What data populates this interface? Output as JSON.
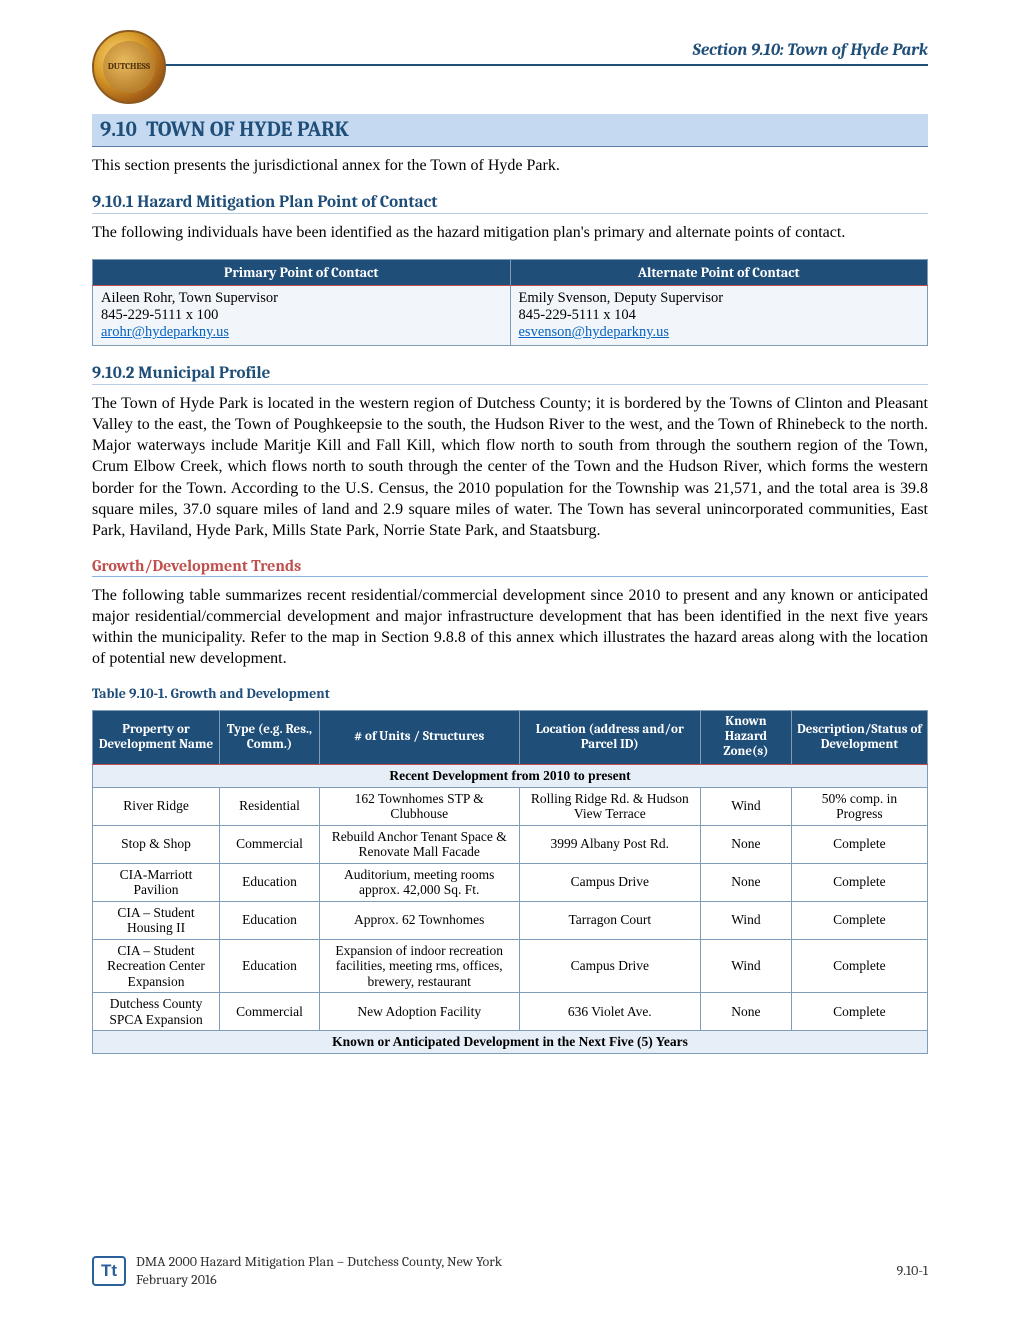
{
  "header": {
    "section_ref": "Section 9.10: Town of Hyde Park"
  },
  "title": {
    "number": "9.10",
    "text": "TOWN OF HYDE PARK"
  },
  "intro": "This section presents the jurisdictional annex for the Town of Hyde Park.",
  "contact_section": {
    "heading": "9.10.1 Hazard Mitigation Plan Point of Contact",
    "body": "The following individuals have been identified as the hazard mitigation plan's primary and alternate points of contact.",
    "primary_header": "Primary Point of Contact",
    "alternate_header": "Alternate Point of Contact",
    "primary": {
      "name_title": "Aileen Rohr, Town Supervisor",
      "phone": "845-229-5111 x 100",
      "email": "arohr@hydeparkny.us"
    },
    "alternate": {
      "name_title": "Emily Svenson, Deputy Supervisor",
      "phone": "845-229-5111 x 104",
      "email": "esvenson@hydeparkny.us"
    }
  },
  "profile_section": {
    "heading": "9.10.2 Municipal Profile",
    "body": "The Town of Hyde Park is located in the western region of Dutchess County; it is bordered by the Towns of Clinton and Pleasant Valley to the east, the Town of Poughkeepsie to the south, the Hudson River to the west, and the Town of Rhinebeck to the north.  Major waterways include Maritje Kill and Fall Kill, which flow north to south from through the southern region of the Town, Crum Elbow Creek, which flows north to south through the center of the Town and the Hudson River, which forms the western border for the Town.  According to the U.S. Census, the 2010 population for the Township was 21,571, and the total area is 39.8 square miles, 37.0 square miles of land and 2.9 square miles of water.  The Town has several unincorporated communities, East Park, Haviland, Hyde Park, Mills State Park, Norrie State Park, and Staatsburg."
  },
  "growth_section": {
    "heading": "Growth/Development Trends",
    "body": "The following table summarizes recent residential/commercial development since 2010 to present and any known or anticipated major residential/commercial development and major infrastructure development that has been identified in the next five years within the municipality.  Refer to the map in Section 9.8.8 of this annex which illustrates the hazard areas along with the location of potential new development.",
    "table_caption": "Table 9.10-1.  Growth and Development"
  },
  "dev_table": {
    "headers": {
      "name": "Property or Development Name",
      "type": "Type\n(e.g. Res., Comm.)",
      "units": "# of Units / Structures",
      "location": "Location (address and/or Parcel ID)",
      "hazard": "Known Hazard Zone(s)",
      "desc": "Description/Status of Development"
    },
    "section1_label": "Recent Development from 2010 to present",
    "section2_label": "Known or Anticipated Development in the Next Five (5) Years",
    "rows": [
      {
        "name": "River Ridge",
        "type": "Residential",
        "units": "162 Townhomes STP & Clubhouse",
        "loc": "Rolling Ridge Rd. & Hudson View Terrace",
        "haz": "Wind",
        "desc": "50% comp. in Progress"
      },
      {
        "name": "Stop & Shop",
        "type": "Commercial",
        "units": "Rebuild Anchor Tenant Space & Renovate Mall Facade",
        "loc": "3999 Albany Post Rd.",
        "haz": "None",
        "desc": "Complete"
      },
      {
        "name": "CIA-Marriott Pavilion",
        "type": "Education",
        "units": "Auditorium, meeting rooms approx. 42,000 Sq. Ft.",
        "loc": "Campus Drive",
        "haz": "None",
        "desc": "Complete"
      },
      {
        "name": "CIA – Student Housing II",
        "type": "Education",
        "units": "Approx. 62 Townhomes",
        "loc": "Tarragon Court",
        "haz": "Wind",
        "desc": "Complete"
      },
      {
        "name": "CIA – Student Recreation Center Expansion",
        "type": "Education",
        "units": "Expansion of indoor recreation facilities, meeting rms, offices, brewery, restaurant",
        "loc": "Campus Drive",
        "haz": "Wind",
        "desc": "Complete"
      },
      {
        "name": "Dutchess County SPCA Expansion",
        "type": "Commercial",
        "units": "New Adoption Facility",
        "loc": "636 Violet Ave.",
        "haz": "None",
        "desc": "Complete"
      }
    ]
  },
  "footer": {
    "line1": "DMA 2000 Hazard Mitigation Plan – Dutchess County, New York",
    "line2": "February 2016",
    "page": "9.10-1",
    "logo_text": "Tt"
  }
}
